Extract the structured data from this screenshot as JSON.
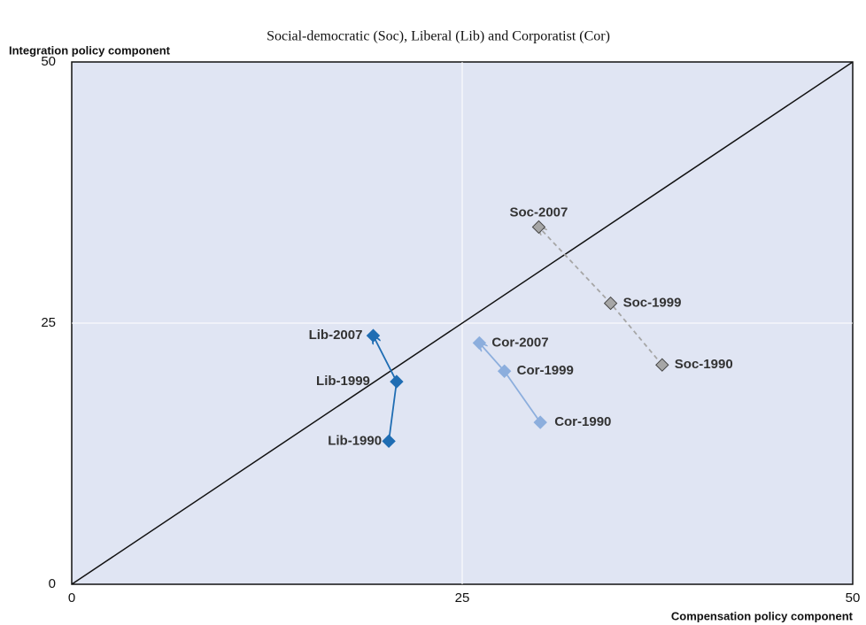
{
  "chart_data": {
    "type": "scatter",
    "title": "Social-democratic (Soc), Liberal (Lib) and Corporatist (Cor)",
    "xlabel": "Compensation policy component",
    "ylabel": "Integration policy component",
    "xlim": [
      0,
      50
    ],
    "ylim": [
      0,
      50
    ],
    "xticks": [
      0,
      25,
      50
    ],
    "yticks": [
      0,
      25,
      50
    ],
    "grid": true,
    "series": [
      {
        "labels": [
          "Lib-1990",
          "Lib-1999",
          "Lib-2007"
        ],
        "color": "#1f6db3",
        "line_style": "solid",
        "x": [
          20.3,
          20.8,
          19.3
        ],
        "y": [
          13.7,
          19.4,
          23.8
        ]
      },
      {
        "labels": [
          "Cor-1990",
          "Cor-1999",
          "Cor-2007"
        ],
        "color": "#8caedd",
        "line_style": "solid",
        "x": [
          30.0,
          27.7,
          26.1
        ],
        "y": [
          15.5,
          20.4,
          23.1
        ]
      },
      {
        "labels": [
          "Soc-1990",
          "Soc-1999",
          "Soc-2007"
        ],
        "color": "#a6a6a6",
        "line_style": "dashed",
        "x": [
          37.8,
          34.5,
          29.9
        ],
        "y": [
          21.0,
          26.9,
          34.2
        ]
      }
    ]
  }
}
